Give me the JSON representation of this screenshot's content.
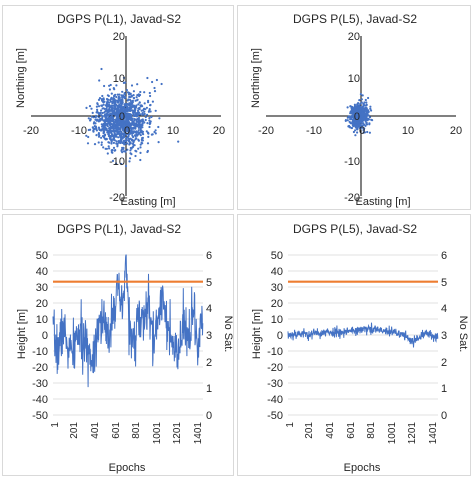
{
  "chart_data": [
    {
      "type": "scatter",
      "title": "DGPS P(L1), Javad-S2",
      "xlabel": "Easting [m]",
      "ylabel": "Northing [m]",
      "xlim": [
        -20,
        20
      ],
      "ylim": [
        -20,
        20
      ],
      "xticks": [
        "-20",
        "-10",
        "0",
        "10",
        "20"
      ],
      "yticks": [
        "20",
        "10",
        "0",
        "-10",
        "-20"
      ],
      "grid": false,
      "color": "#4472c4",
      "cloud": {
        "center": [
          -1,
          -1
        ],
        "spread": [
          2.6,
          3.4
        ],
        "n": 1300
      },
      "points": [
        [
          5.5,
          8.5
        ],
        [
          6.5,
          9
        ],
        [
          7.5,
          8
        ],
        [
          6,
          7
        ],
        [
          4.5,
          9.5
        ],
        [
          5,
          -2
        ],
        [
          6,
          -4
        ],
        [
          4.5,
          -9
        ],
        [
          3,
          -11
        ],
        [
          -1,
          -12
        ],
        [
          0,
          -12.5
        ],
        [
          2,
          -10
        ],
        [
          -3,
          -9
        ],
        [
          -5,
          5
        ],
        [
          3,
          6
        ]
      ]
    },
    {
      "type": "scatter",
      "title": "DGPS P(L5), Javad-S2",
      "xlabel": "Easting [m]",
      "ylabel": "Northing [m]",
      "xlim": [
        -20,
        20
      ],
      "ylim": [
        -20,
        20
      ],
      "xticks": [
        "-20",
        "-10",
        "0",
        "10",
        "20"
      ],
      "yticks": [
        "20",
        "10",
        "0",
        "-10",
        "-20"
      ],
      "grid": false,
      "color": "#4472c4",
      "cloud": {
        "center": [
          -0.5,
          0
        ],
        "spread": [
          1.0,
          1.6
        ],
        "n": 500
      },
      "points": [
        [
          1,
          4
        ],
        [
          1.5,
          4.5
        ],
        [
          -2,
          -3
        ],
        [
          -1.5,
          -4
        ],
        [
          0.5,
          3
        ],
        [
          -2.5,
          -2.5
        ]
      ]
    },
    {
      "type": "line",
      "title": "DGPS P(L1), Javad-S2",
      "xlabel": "Epochs",
      "ylabel": "Height [m]",
      "y2label": "No Sat.",
      "xlim": [
        1,
        1500
      ],
      "ylim": [
        -50,
        50
      ],
      "y2lim": [
        0,
        6
      ],
      "xticks": [
        "1",
        "201",
        "401",
        "601",
        "801",
        "1001",
        "1201",
        "1401"
      ],
      "yticks": [
        "50",
        "40",
        "30",
        "20",
        "10",
        "0",
        "-10",
        "-20",
        "-30",
        "-40",
        "-50"
      ],
      "y2ticks": [
        "6",
        "5",
        "4",
        "3",
        "2",
        "1",
        "0"
      ],
      "grid": true,
      "series": [
        {
          "color": "#4472c4",
          "anchors": [
            [
              1,
              0
            ],
            [
              50,
              -10
            ],
            [
              100,
              5
            ],
            [
              150,
              -8
            ],
            [
              200,
              -12
            ],
            [
              250,
              2
            ],
            [
              300,
              -5
            ],
            [
              350,
              -10
            ],
            [
              400,
              -15
            ],
            [
              450,
              8
            ],
            [
              500,
              10
            ],
            [
              550,
              -5
            ],
            [
              600,
              18
            ],
            [
              650,
              25
            ],
            [
              700,
              15
            ],
            [
              730,
              49
            ],
            [
              760,
              10
            ],
            [
              800,
              -10
            ],
            [
              850,
              12
            ],
            [
              900,
              5
            ],
            [
              950,
              20
            ],
            [
              1000,
              -5
            ],
            [
              1050,
              10
            ],
            [
              1100,
              28
            ],
            [
              1150,
              2
            ],
            [
              1200,
              -8
            ],
            [
              1250,
              -15
            ],
            [
              1300,
              5
            ],
            [
              1350,
              -2
            ],
            [
              1400,
              15
            ],
            [
              1450,
              -10
            ],
            [
              1500,
              12
            ]
          ],
          "noise": 8
        },
        {
          "color": "#ed7d31",
          "axis": "right",
          "constant": 5
        }
      ]
    },
    {
      "type": "line",
      "title": "DGPS P(L5), Javad-S2",
      "xlabel": "Epochs",
      "ylabel": "Height [m]",
      "y2label": "No Sat.",
      "xlim": [
        1,
        1500
      ],
      "ylim": [
        -50,
        50
      ],
      "y2lim": [
        0,
        6
      ],
      "xticks": [
        "1",
        "201",
        "401",
        "601",
        "801",
        "1001",
        "1201",
        "1401"
      ],
      "yticks": [
        "50",
        "40",
        "30",
        "20",
        "10",
        "0",
        "-10",
        "-20",
        "-30",
        "-40",
        "-50"
      ],
      "y2ticks": [
        "6",
        "5",
        "4",
        "3",
        "2",
        "1",
        "0"
      ],
      "grid": true,
      "series": [
        {
          "color": "#4472c4",
          "anchors": [
            [
              1,
              0
            ],
            [
              100,
              1
            ],
            [
              200,
              0.5
            ],
            [
              300,
              1
            ],
            [
              400,
              1.5
            ],
            [
              500,
              2
            ],
            [
              600,
              2.5
            ],
            [
              700,
              3
            ],
            [
              800,
              3.5
            ],
            [
              900,
              3
            ],
            [
              1000,
              2
            ],
            [
              1100,
              1
            ],
            [
              1200,
              -1
            ],
            [
              1250,
              -5
            ],
            [
              1300,
              -2
            ],
            [
              1350,
              0
            ],
            [
              1400,
              1
            ],
            [
              1450,
              -1
            ],
            [
              1500,
              0
            ]
          ],
          "noise": 1.6
        },
        {
          "color": "#ed7d31",
          "axis": "right",
          "constant": 5
        }
      ]
    }
  ]
}
